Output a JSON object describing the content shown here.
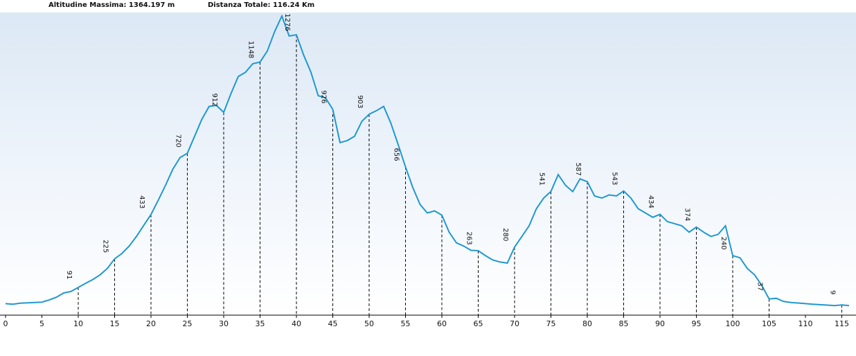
{
  "header": {
    "max_altitude": "Altitudine Massima: 1364.197 m",
    "total_distance": "Distanza Totale: 116.24 Km"
  },
  "colors": {
    "line": "#1e98d0",
    "grid_dash": "#000000",
    "bg_top": "#dce8f5",
    "bg_bottom": "#ffffff"
  },
  "chart_data": {
    "type": "line",
    "title": "",
    "xlabel": "",
    "ylabel": "",
    "xlim": [
      0,
      116.24
    ],
    "ylim": [
      0,
      1364.197
    ],
    "x_ticks": [
      0,
      5,
      10,
      15,
      20,
      25,
      30,
      35,
      40,
      45,
      50,
      55,
      60,
      65,
      70,
      75,
      80,
      85,
      90,
      95,
      100,
      105,
      110,
      115
    ],
    "x_tick_labels": [
      "0",
      "5",
      "10",
      "15",
      "20",
      "25",
      "30",
      "35",
      "40",
      "45",
      "50",
      "55",
      "60",
      "65",
      "70",
      "75",
      "80",
      "85",
      "90",
      "95",
      "100",
      "105",
      "110",
      "115"
    ],
    "markers": [
      {
        "x": 10,
        "y": 91,
        "label": "91"
      },
      {
        "x": 15,
        "y": 225,
        "label": "225"
      },
      {
        "x": 20,
        "y": 433,
        "label": "433"
      },
      {
        "x": 25,
        "y": 720,
        "label": "720"
      },
      {
        "x": 30,
        "y": 912,
        "label": "912"
      },
      {
        "x": 35,
        "y": 1148,
        "label": "1148"
      },
      {
        "x": 40,
        "y": 1276,
        "label": "1276"
      },
      {
        "x": 45,
        "y": 926,
        "label": "926"
      },
      {
        "x": 50,
        "y": 903,
        "label": "903"
      },
      {
        "x": 55,
        "y": 656,
        "label": "656"
      },
      {
        "x": 60,
        "y": 430,
        "label": ""
      },
      {
        "x": 65,
        "y": 263,
        "label": "263"
      },
      {
        "x": 70,
        "y": 280,
        "label": "280"
      },
      {
        "x": 75,
        "y": 541,
        "label": "541"
      },
      {
        "x": 80,
        "y": 587,
        "label": "587"
      },
      {
        "x": 85,
        "y": 543,
        "label": "543"
      },
      {
        "x": 90,
        "y": 434,
        "label": "434"
      },
      {
        "x": 95,
        "y": 374,
        "label": "374"
      },
      {
        "x": 100,
        "y": 240,
        "label": "240"
      },
      {
        "x": 105,
        "y": 37,
        "label": "37"
      },
      {
        "x": 115,
        "y": 9,
        "label": "9"
      }
    ],
    "series": [
      {
        "x": [
          0,
          1,
          2,
          3,
          4,
          5,
          6,
          7,
          8,
          9,
          10,
          11,
          12,
          13,
          14,
          15,
          16,
          17,
          18,
          19,
          20,
          21,
          22,
          23,
          24,
          25,
          26,
          27,
          28,
          29,
          30,
          31,
          32,
          33,
          34,
          35,
          36,
          37,
          38,
          39,
          40,
          41,
          42,
          43,
          44,
          45,
          46,
          47,
          48,
          49,
          50,
          51,
          52,
          53,
          54,
          55,
          56,
          57,
          58,
          59,
          60,
          61,
          62,
          63,
          64,
          65,
          66,
          67,
          68,
          69,
          70,
          71,
          72,
          73,
          74,
          75,
          76,
          77,
          78,
          79,
          80,
          81,
          82,
          83,
          84,
          85,
          86,
          87,
          88,
          89,
          90,
          91,
          92,
          93,
          94,
          95,
          96,
          97,
          98,
          99,
          100,
          101,
          102,
          103,
          104,
          105,
          106,
          107,
          108,
          109,
          110,
          111,
          112,
          113,
          114,
          115,
          116
        ],
        "y": [
          15,
          12,
          17,
          19,
          20,
          22,
          32,
          45,
          65,
          72,
          91,
          110,
          128,
          150,
          180,
          225,
          250,
          285,
          330,
          382,
          433,
          500,
          570,
          645,
          700,
          720,
          800,
          880,
          940,
          945,
          912,
          1000,
          1080,
          1100,
          1140,
          1148,
          1200,
          1290,
          1364,
          1270,
          1276,
          1180,
          1100,
          990,
          980,
          926,
          770,
          780,
          800,
          870,
          903,
          920,
          940,
          860,
          760,
          656,
          560,
          480,
          440,
          450,
          430,
          350,
          300,
          285,
          265,
          263,
          240,
          220,
          210,
          205,
          280,
          330,
          380,
          460,
          510,
          541,
          620,
          570,
          540,
          600,
          587,
          520,
          510,
          525,
          520,
          543,
          510,
          460,
          440,
          420,
          434,
          400,
          390,
          380,
          350,
          374,
          350,
          330,
          340,
          380,
          240,
          230,
          180,
          150,
          100,
          37,
          40,
          25,
          20,
          18,
          15,
          12,
          10,
          8,
          6,
          9,
          6
        ]
      }
    ]
  }
}
